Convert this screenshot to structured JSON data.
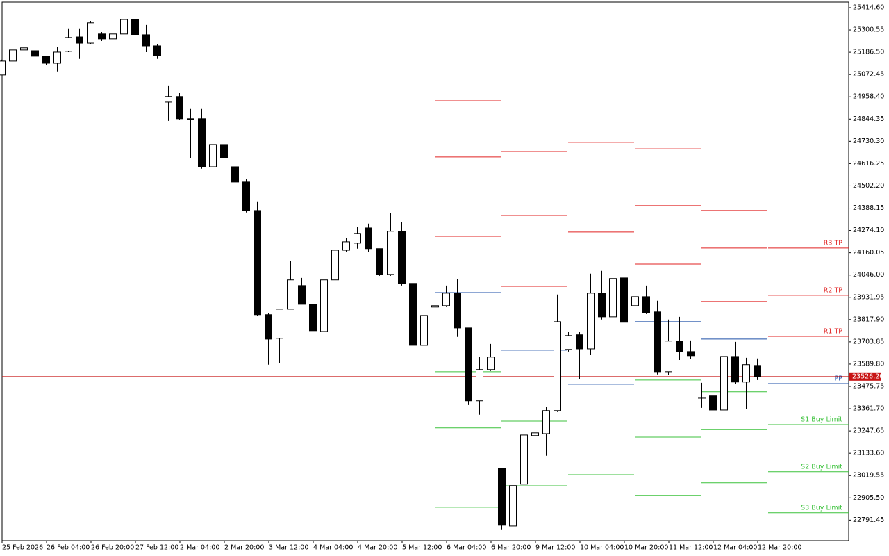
{
  "chart_data": {
    "type": "candlestick",
    "categories": [
      "25 Feb 2026",
      null,
      null,
      null,
      "26 Feb 04:00",
      null,
      null,
      null,
      "26 Feb 20:00",
      null,
      null,
      null,
      "27 Feb 12:00",
      null,
      null,
      null,
      "2 Mar 04:00",
      null,
      null,
      null,
      "2 Mar 20:00",
      null,
      null,
      null,
      "3 Mar 12:00",
      null,
      null,
      null,
      "4 Mar 04:00",
      null,
      null,
      null,
      "4 Mar 20:00",
      null,
      null,
      null,
      "5 Mar 12:00",
      null,
      null,
      null,
      "6 Mar 04:00",
      null,
      null,
      null,
      "6 Mar 20:00",
      null,
      null,
      null,
      "9 Mar 12:00",
      null,
      null,
      null,
      "10 Mar 04:00",
      null,
      null,
      null,
      "10 Mar 20:00",
      null,
      null,
      null,
      "11 Mar 12:00",
      null,
      null,
      null,
      "12 Mar 04:00",
      null,
      null,
      null,
      "12 Mar 20:00"
    ],
    "open": [
      25070,
      25141,
      25198,
      25194,
      25166,
      25130,
      25191,
      25265,
      25233,
      25280,
      25255,
      25280,
      25354,
      25276,
      25219,
      24931,
      24960,
      24846,
      24846,
      24600,
      24714,
      24600,
      24522,
      24376,
      23843,
      23722,
      23871,
      23992,
      23896,
      23757,
      24021,
      24173,
      24209,
      24287,
      24181,
      24049,
      24270,
      24003,
      23686,
      23882,
      23889,
      23953,
      23775,
      23402,
      23562,
      23057,
      22761,
      22975,
      23224,
      23234,
      23352,
      23665,
      23740,
      23668,
      23953,
      23832,
      24031,
      23889,
      23935,
      23857,
      23551,
      23708,
      23654,
      23419,
      23427,
      23355,
      23629,
      23498,
      23583
    ],
    "high": [
      25148,
      25212,
      25216,
      25194,
      25169,
      25212,
      25305,
      25305,
      25347,
      25290,
      25301,
      25404,
      25354,
      25326,
      25226,
      25013,
      24977,
      24896,
      24896,
      24725,
      24718,
      24654,
      24536,
      24423,
      23853,
      23871,
      24117,
      24031,
      23914,
      24021,
      24230,
      24237,
      24294,
      24309,
      24181,
      24362,
      24316,
      24106,
      23875,
      23900,
      23992,
      24024,
      23775,
      23626,
      23693,
      23057,
      23007,
      23274,
      23352,
      23370,
      23946,
      23757,
      23757,
      24053,
      24067,
      24109,
      24053,
      23967,
      23992,
      23914,
      23818,
      23832,
      23711,
      23494,
      23427,
      23636,
      23704,
      23622,
      23619
    ],
    "low": [
      25070,
      25116,
      25194,
      25155,
      25123,
      25088,
      25187,
      25152,
      25226,
      25244,
      25244,
      25233,
      25205,
      25187,
      25152,
      24835,
      24842,
      24643,
      24590,
      24583,
      24629,
      24511,
      24366,
      23836,
      23587,
      23594,
      23871,
      23896,
      23725,
      23704,
      23989,
      24166,
      24181,
      24166,
      24042,
      24042,
      23992,
      23676,
      23676,
      23836,
      23882,
      23729,
      23380,
      23331,
      23555,
      22744,
      22704,
      22850,
      23128,
      23121,
      23345,
      23654,
      23515,
      23636,
      23818,
      23761,
      23757,
      23882,
      23846,
      23537,
      23533,
      23611,
      23615,
      23366,
      23249,
      23338,
      23487,
      23362,
      23508
    ],
    "close": [
      25141,
      25198,
      25209,
      25166,
      25130,
      25187,
      25262,
      25233,
      25337,
      25255,
      25280,
      25354,
      25276,
      25219,
      25169,
      24960,
      24846,
      24842,
      24600,
      24714,
      24647,
      24522,
      24376,
      23843,
      23718,
      23871,
      24021,
      23896,
      23761,
      24021,
      24173,
      24216,
      24259,
      24181,
      24049,
      24270,
      24003,
      23686,
      23839,
      23889,
      23953,
      23775,
      23402,
      23562,
      23626,
      22765,
      22968,
      23227,
      23238,
      23352,
      23807,
      23736,
      23668,
      23953,
      23832,
      24028,
      23804,
      23935,
      23853,
      23551,
      23708,
      23654,
      23633,
      23416,
      23355,
      23629,
      23498,
      23587,
      23526
    ],
    "up_color": "#ffffff",
    "down_color": "#000000",
    "levels": [
      {
        "name": "R3 TP",
        "color": "#e02020",
        "values": [
          24938,
          24678,
          24725,
          24692,
          24376,
          24184
        ]
      },
      {
        "name": "R2 TP",
        "color": "#e02020",
        "values": [
          24650,
          24351,
          24266,
          24401,
          24184,
          23942
        ]
      },
      {
        "name": "R1 TP",
        "color": "#e02020",
        "values": [
          24244,
          23988,
          null,
          24102,
          23910,
          23732
        ]
      },
      {
        "name": "PP",
        "color": "#1e4fa8",
        "values": [
          23956,
          23661,
          23487,
          23807,
          23718,
          23490
        ]
      },
      {
        "name": "S1 Buy Limit",
        "color": "#3cc23c",
        "values": [
          23551,
          23298,
          null,
          23508,
          23448,
          23280
        ]
      },
      {
        "name": "S2 Buy Limit",
        "color": "#3cc23c",
        "values": [
          23263,
          22967,
          23024,
          23216,
          23256,
          23039
        ]
      },
      {
        "name": "S3 Buy Limit",
        "color": "#3cc23c",
        "values": [
          22857,
          null,
          null,
          22918,
          22982,
          22829
        ]
      }
    ],
    "last_price": {
      "value": 23526.2,
      "label": "23526.20"
    },
    "last_price_color": "#c81414",
    "ylim": [
      22686,
      25443
    ],
    "yticks": [
      {
        "value": 25414.6,
        "label": "25414.60"
      },
      {
        "value": 25300.55,
        "label": "25300.55"
      },
      {
        "value": 25186.5,
        "label": "25186.50"
      },
      {
        "value": 25072.45,
        "label": "25072.45"
      },
      {
        "value": 24958.4,
        "label": "24958.40"
      },
      {
        "value": 24844.35,
        "label": "24844.35"
      },
      {
        "value": 24730.3,
        "label": "24730.30"
      },
      {
        "value": 24616.25,
        "label": "24616.25"
      },
      {
        "value": 24502.2,
        "label": "24502.20"
      },
      {
        "value": 24388.15,
        "label": "24388.15"
      },
      {
        "value": 24274.1,
        "label": "24274.10"
      },
      {
        "value": 24160.05,
        "label": "24160.05"
      },
      {
        "value": 24046,
        "label": "24046.00"
      },
      {
        "value": 23931.95,
        "label": "23931.95"
      },
      {
        "value": 23817.9,
        "label": "23817.90"
      },
      {
        "value": 23703.85,
        "label": "23703.85"
      },
      {
        "value": 23589.8,
        "label": "23589.80"
      },
      {
        "value": 23475.75,
        "label": "23475.75"
      },
      {
        "value": 23361.7,
        "label": "23361.70"
      },
      {
        "value": 23247.65,
        "label": "23247.65"
      },
      {
        "value": 23133.6,
        "label": "23133.60"
      },
      {
        "value": 23019.55,
        "label": "23019.55"
      },
      {
        "value": 22905.5,
        "label": "22905.50"
      },
      {
        "value": 22791.45,
        "label": "22791.45"
      }
    ],
    "grid": false
  }
}
